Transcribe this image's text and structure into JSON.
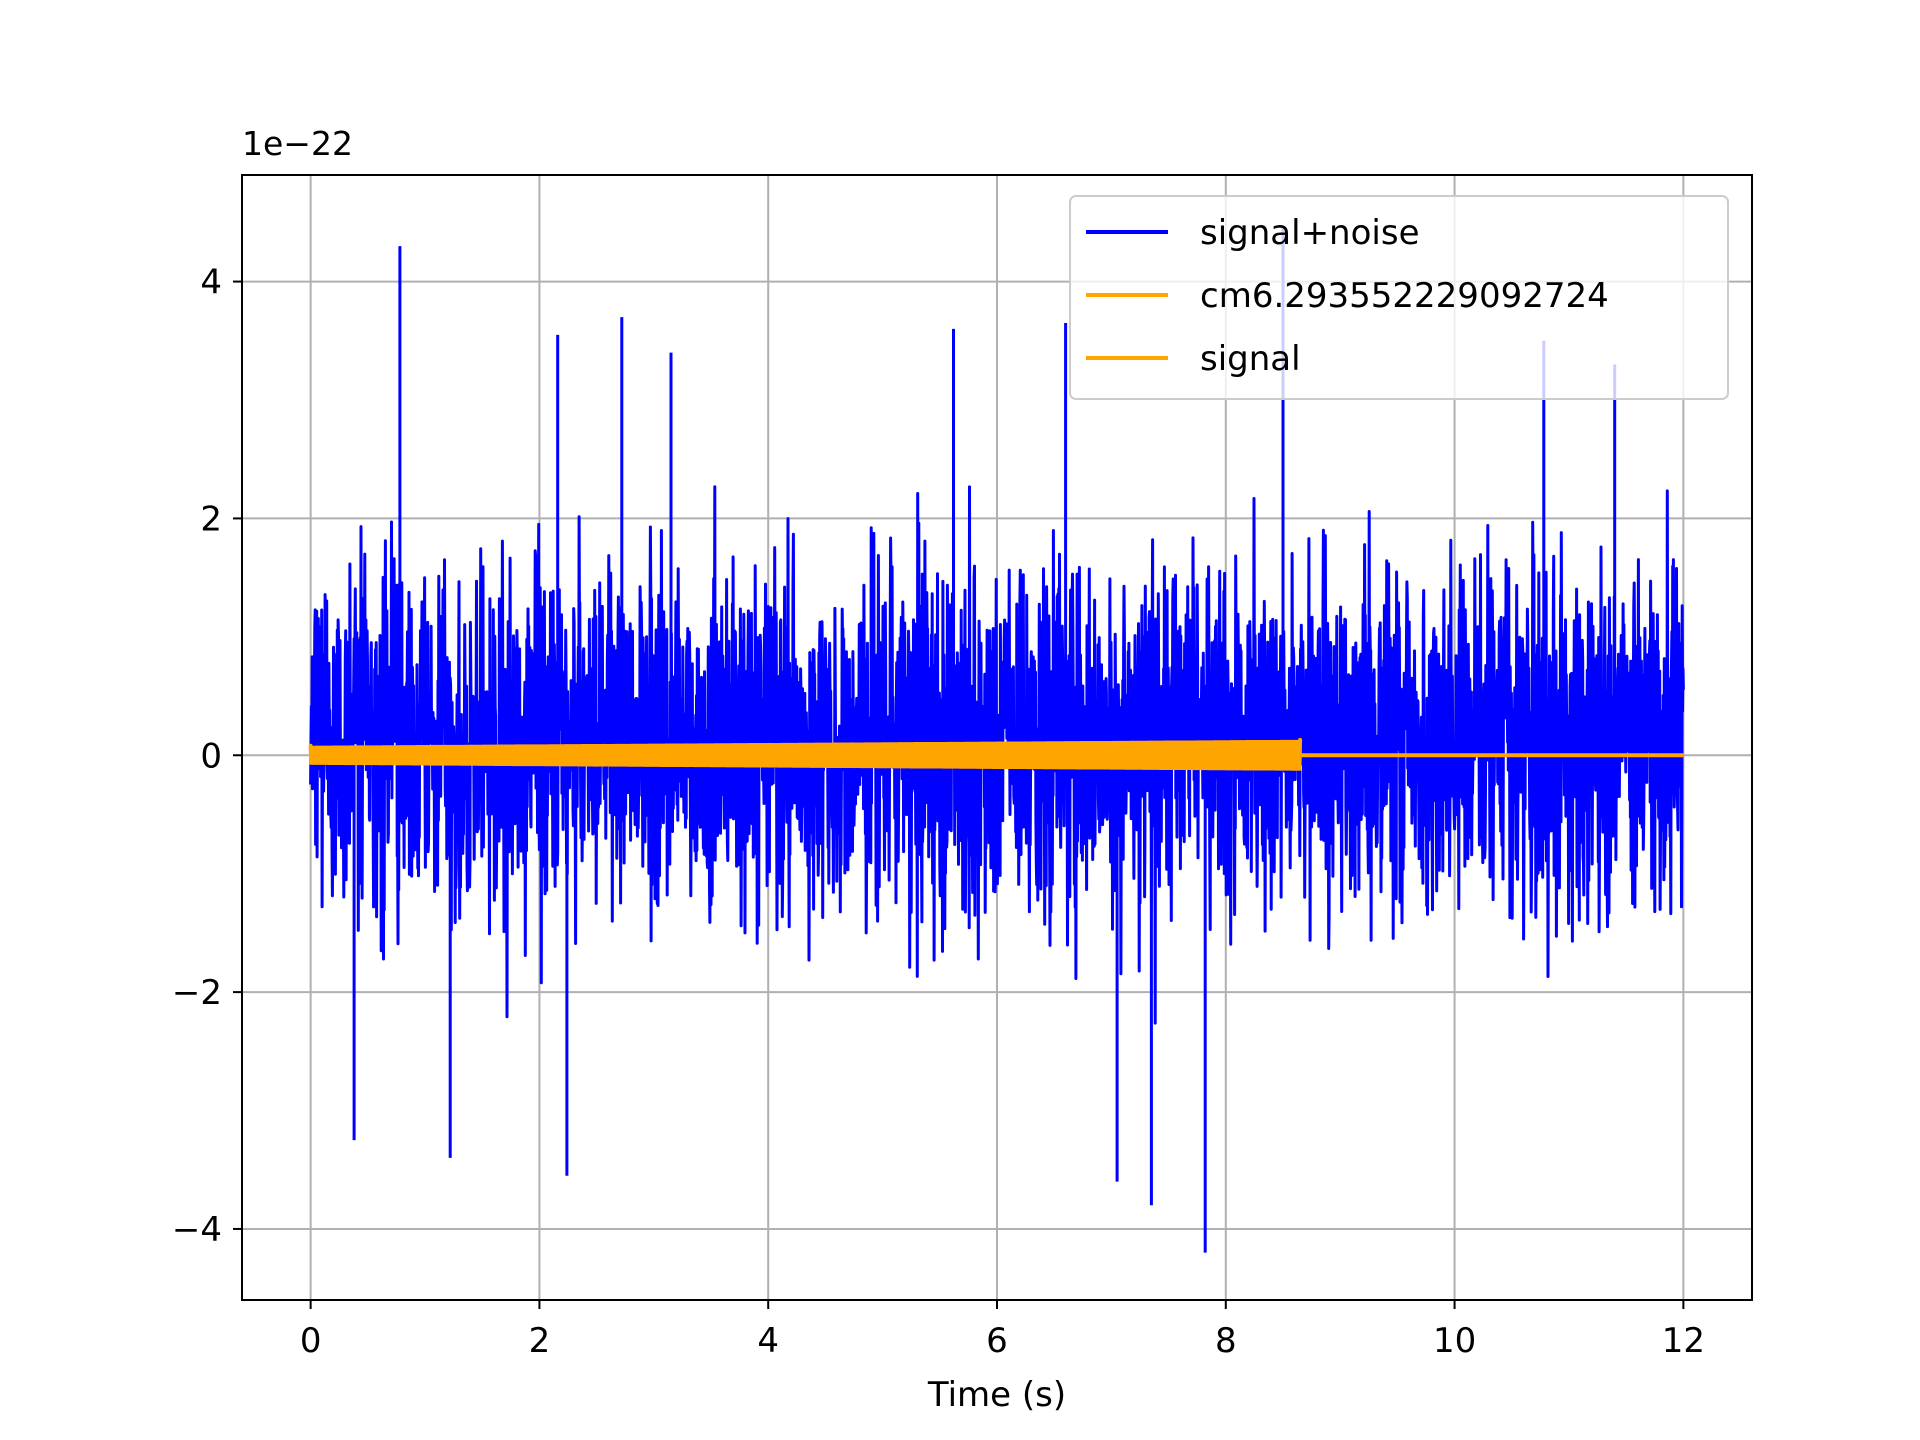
{
  "chart_data": {
    "type": "line",
    "title": "",
    "xlabel": "Time (s)",
    "ylabel": "",
    "y_offset_label": "1e−22",
    "xlim": [
      -0.6,
      12.6
    ],
    "ylim": [
      -4.6,
      4.9
    ],
    "x_ticks": [
      0,
      2,
      4,
      6,
      8,
      10,
      12
    ],
    "x_tick_labels": [
      "0",
      "2",
      "4",
      "6",
      "8",
      "10",
      "12"
    ],
    "y_ticks": [
      -4,
      -2,
      0,
      2,
      4
    ],
    "y_tick_labels": [
      "−4",
      "−2",
      "0",
      "2",
      "4"
    ],
    "grid": true,
    "legend_position": "top-right",
    "series": [
      {
        "name": "signal+noise",
        "color": "#0000ff",
        "description": "dense noise band",
        "x_range": [
          0,
          12
        ],
        "typical_range": [
          -1.7,
          2.0
        ],
        "peaks": [
          {
            "x": 0.78,
            "y": 4.3
          },
          {
            "x": 2.72,
            "y": 3.7
          },
          {
            "x": 2.16,
            "y": 3.55
          },
          {
            "x": 3.15,
            "y": 3.4
          },
          {
            "x": 5.62,
            "y": 3.6
          },
          {
            "x": 6.6,
            "y": 3.65
          },
          {
            "x": 8.5,
            "y": 4.45
          },
          {
            "x": 10.78,
            "y": 3.5
          },
          {
            "x": 11.4,
            "y": 3.3
          },
          {
            "x": 2.24,
            "y": -3.55
          },
          {
            "x": 7.35,
            "y": -3.8
          },
          {
            "x": 7.82,
            "y": -4.2
          },
          {
            "x": 7.05,
            "y": -3.6
          },
          {
            "x": 1.22,
            "y": -3.4
          },
          {
            "x": 0.38,
            "y": -3.25
          }
        ]
      },
      {
        "name": "cm6.293552229092724",
        "color": "#ffa500",
        "description": "oscillating template with amplitude envelope",
        "x_range": [
          0,
          8.65
        ],
        "amplitude_envelope": [
          {
            "x": 0,
            "y": 0.08
          },
          {
            "x": 8.6,
            "y": 0.13
          }
        ]
      },
      {
        "name": "signal",
        "color": "#ffa500",
        "x": [
          0,
          8.65,
          12
        ],
        "y": [
          0,
          0,
          0
        ]
      }
    ]
  }
}
